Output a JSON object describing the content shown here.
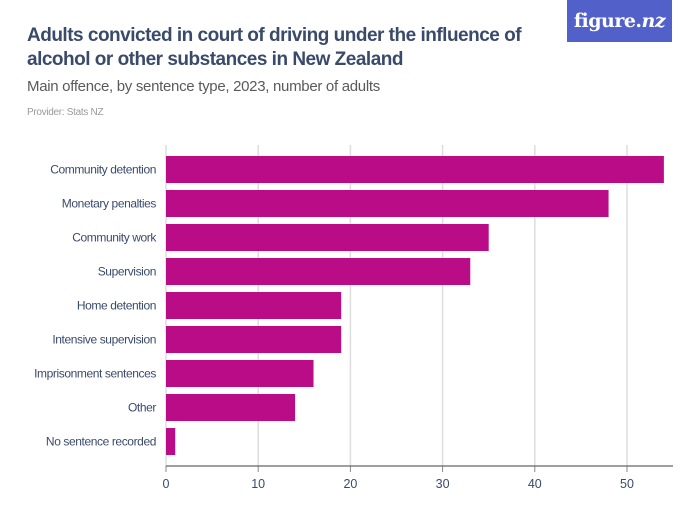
{
  "header": {
    "title": "Adults convicted in court of driving under the influence of alcohol or other substances in New Zealand",
    "subtitle": "Main offence, by sentence type, 2023, number of adults",
    "provider": "Provider: Stats NZ",
    "logo_text": "figure.",
    "logo_suffix": "nz",
    "logo_color": "#5161c9"
  },
  "chart_data": {
    "type": "bar",
    "orientation": "horizontal",
    "title": "Adults convicted in court of driving under the influence of alcohol or other substances in New Zealand",
    "subtitle": "Main offence, by sentence type, 2023, number of adults",
    "xlabel": "",
    "ylabel": "",
    "categories": [
      "Community detention",
      "Monetary penalties",
      "Community work",
      "Supervision",
      "Home detention",
      "Intensive supervision",
      "Imprisonment sentences",
      "Other",
      "No sentence recorded"
    ],
    "values": [
      54,
      48,
      35,
      33,
      19,
      19,
      16,
      14,
      1
    ],
    "xlim": [
      0,
      55
    ],
    "xticks": [
      0,
      10,
      20,
      30,
      40,
      50
    ],
    "grid": true,
    "legend": "none",
    "bar_color": "#b90c86"
  }
}
